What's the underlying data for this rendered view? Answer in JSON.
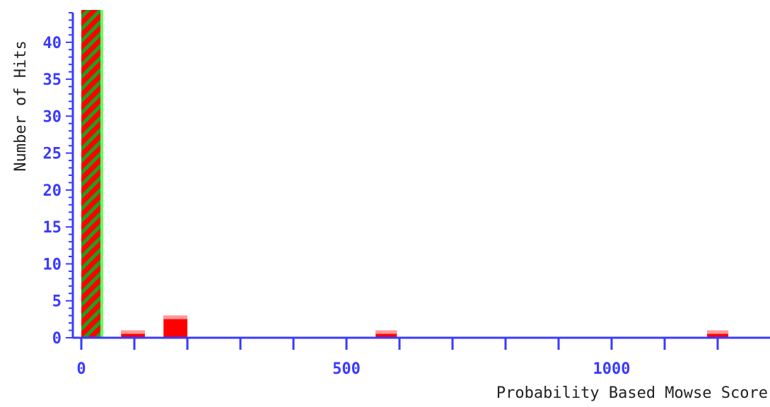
{
  "chart_data": {
    "type": "bar",
    "title": "",
    "xlabel": "Probability Based Mowse Score",
    "ylabel": "Number of Hits",
    "xlim": [
      0,
      1300
    ],
    "ylim": [
      0,
      44
    ],
    "x_ticks": [
      0,
      500,
      1000
    ],
    "y_ticks": [
      0,
      5,
      10,
      15,
      20,
      25,
      30,
      35,
      40
    ],
    "bin_width": 50,
    "bars": [
      {
        "x_start": 0,
        "x_end": 40,
        "value": 44,
        "style": "hatched"
      },
      {
        "x_start": 75,
        "x_end": 120,
        "value": 1,
        "style": "solid"
      },
      {
        "x_start": 155,
        "x_end": 200,
        "value": 3,
        "style": "solid"
      },
      {
        "x_start": 555,
        "x_end": 595,
        "value": 1,
        "style": "solid"
      },
      {
        "x_start": 1180,
        "x_end": 1220,
        "value": 1,
        "style": "solid"
      }
    ],
    "colors": {
      "axis": "#3a3aff",
      "bar": "#ff0000",
      "bar_top": "#ff9999",
      "hatch": "#1fa01f",
      "hatch_edge": "#66ff66",
      "label": "#222222"
    },
    "grid": false,
    "legend": "none"
  }
}
